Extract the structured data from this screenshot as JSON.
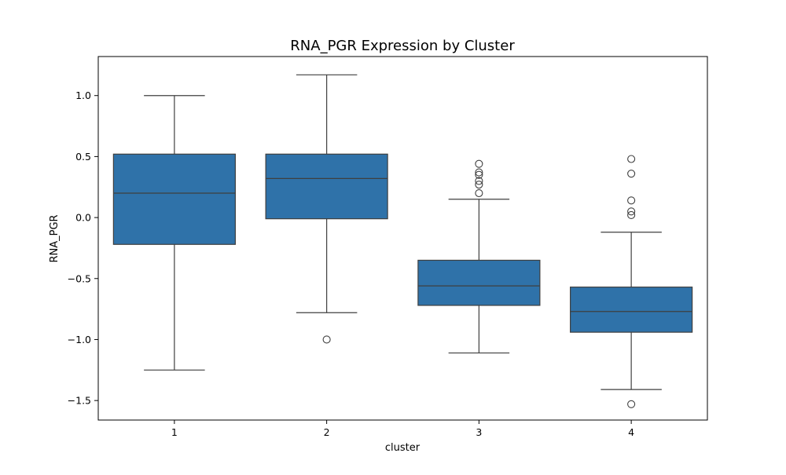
{
  "chart_data": {
    "type": "box",
    "title": "RNA_PGR Expression by Cluster",
    "xlabel": "cluster",
    "ylabel": "RNA_PGR",
    "ylim": [
      -1.66,
      1.32
    ],
    "yticks": [
      1.0,
      0.5,
      0.0,
      -0.5,
      -1.0,
      -1.5
    ],
    "ytick_labels": [
      "1.0",
      "0.5",
      "0.0",
      "−0.5",
      "−1.0",
      "−1.5"
    ],
    "categories": [
      "1",
      "2",
      "3",
      "4"
    ],
    "box_color": "#2f72a9",
    "line_color": "#3f3f3f",
    "grid": false,
    "boxes": [
      {
        "category": "1",
        "whisker_low": -1.25,
        "q1": -0.22,
        "median": 0.2,
        "q3": 0.52,
        "whisker_high": 1.0,
        "outliers": []
      },
      {
        "category": "2",
        "whisker_low": -0.78,
        "q1": -0.01,
        "median": 0.32,
        "q3": 0.52,
        "whisker_high": 1.17,
        "outliers": [
          -1.0
        ]
      },
      {
        "category": "3",
        "whisker_low": -1.11,
        "q1": -0.72,
        "median": -0.56,
        "q3": -0.35,
        "whisker_high": 0.15,
        "outliers": [
          0.44,
          0.37,
          0.35,
          0.3,
          0.27,
          0.2
        ]
      },
      {
        "category": "4",
        "whisker_low": -1.41,
        "q1": -0.94,
        "median": -0.77,
        "q3": -0.57,
        "whisker_high": -0.12,
        "outliers": [
          0.48,
          0.36,
          0.14,
          0.05,
          0.02,
          -1.53
        ]
      }
    ]
  }
}
